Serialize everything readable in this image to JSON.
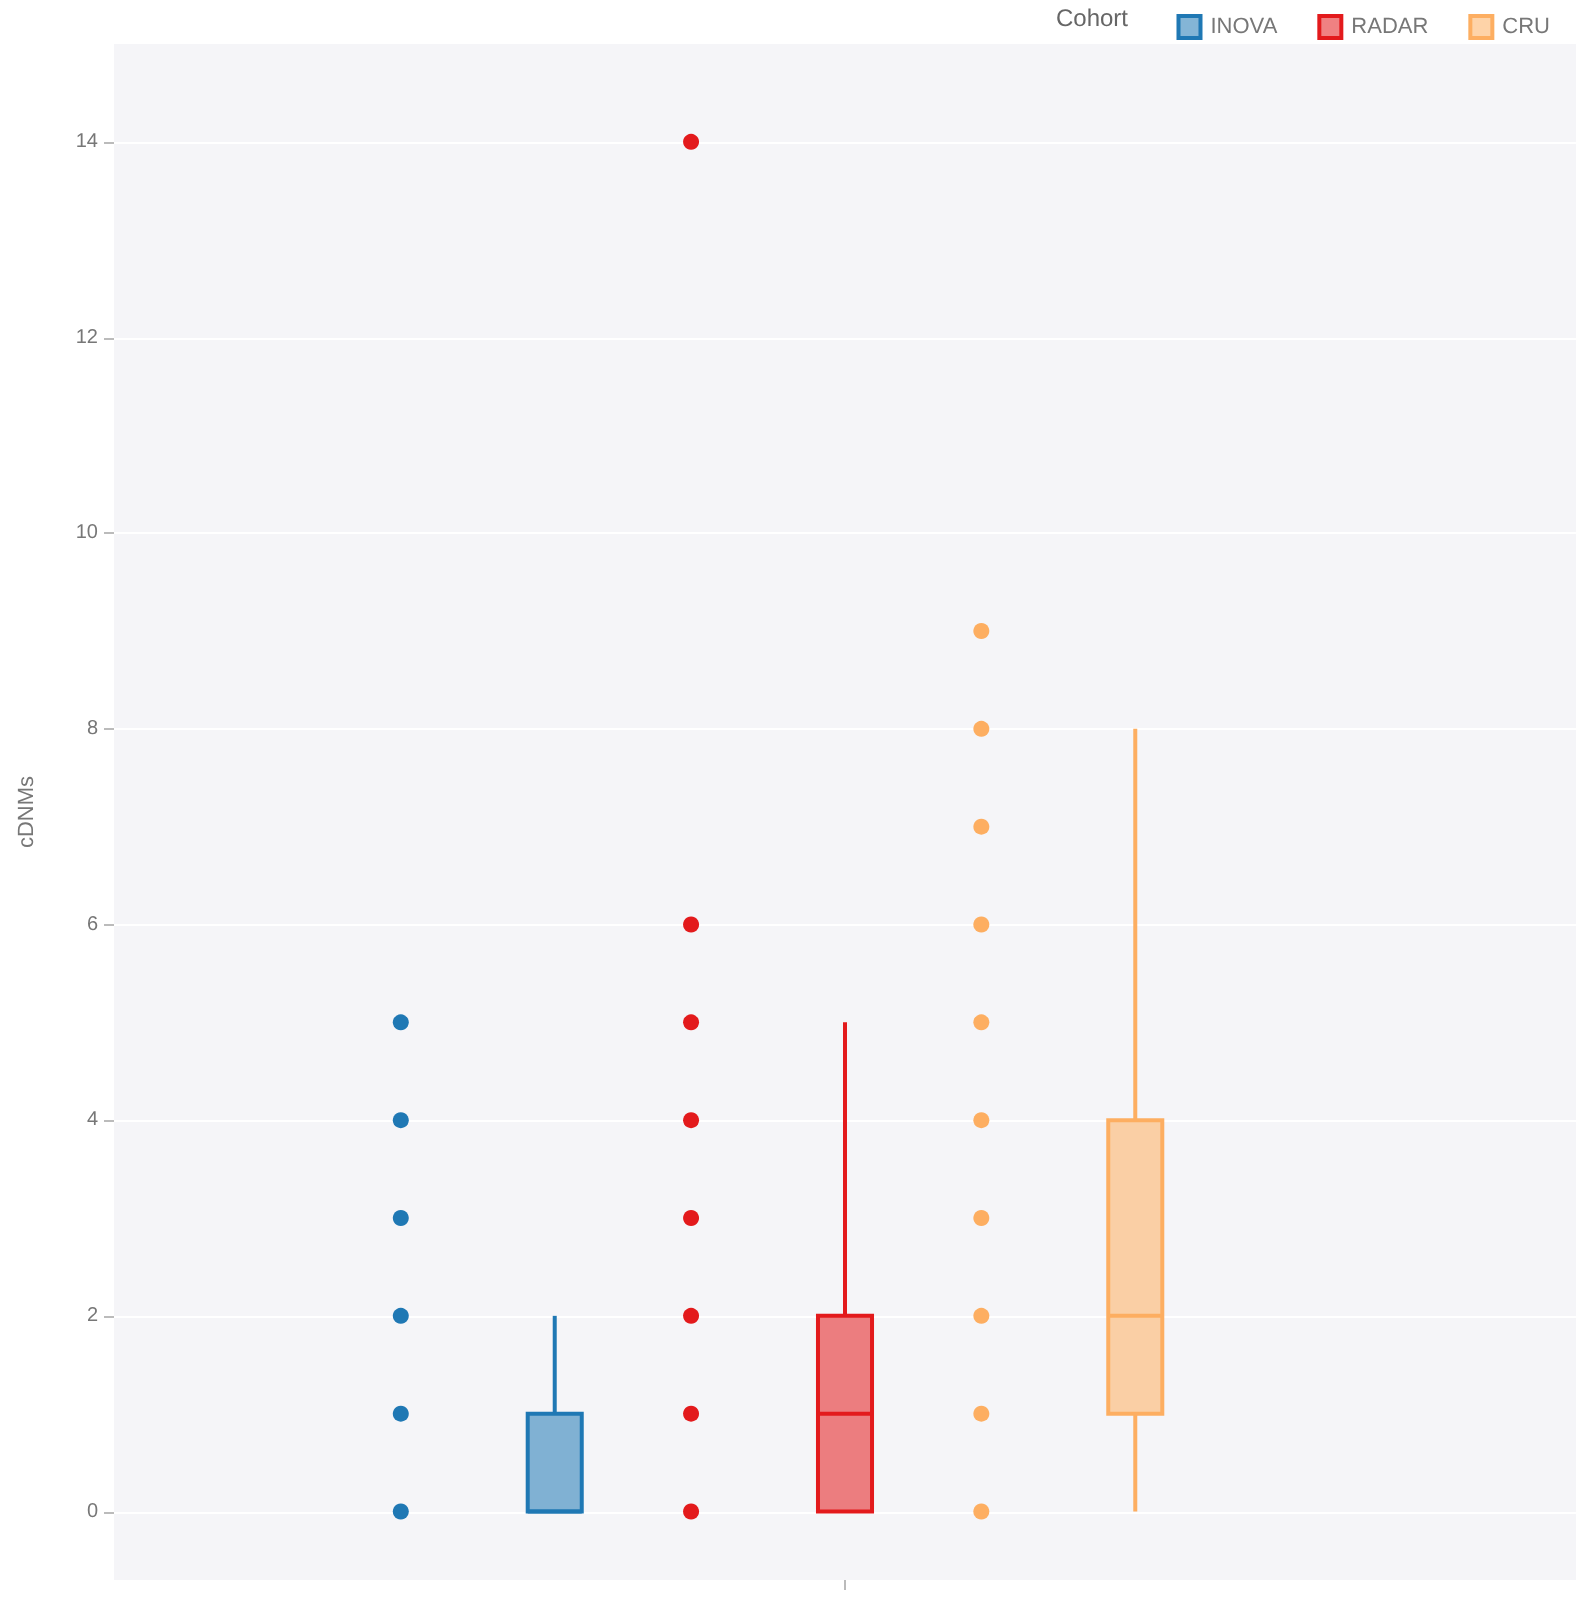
{
  "chart_data": {
    "type": "box",
    "ylabel": "cDNMs",
    "legend_title": "Cohort",
    "categories": [
      null
    ],
    "series": [
      {
        "name": "INOVA",
        "color": "#1f78b4",
        "boxes": [
          {
            "low": 0,
            "q1": 0,
            "median": 0,
            "q3": 1,
            "high": 2
          }
        ]
      },
      {
        "name": "RADAR",
        "color": "#e31a1c",
        "boxes": [
          {
            "low": 0,
            "q1": 0,
            "median": 1,
            "q3": 2,
            "high": 5
          }
        ]
      },
      {
        "name": "CRU",
        "color": "#fdae61",
        "boxes": [
          {
            "low": 0,
            "q1": 1,
            "median": 2,
            "q3": 4,
            "high": 8
          }
        ]
      },
      {
        "type": "scatter",
        "color": "#1f78b4",
        "x": [
          null,
          null,
          null,
          null,
          null,
          null
        ],
        "values": [
          0,
          1,
          2,
          3,
          4,
          5
        ]
      },
      {
        "type": "scatter",
        "color": "#e31a1c",
        "x": [
          null,
          null,
          null,
          null,
          null,
          null,
          null,
          null
        ],
        "values": [
          0,
          1,
          2,
          3,
          4,
          5,
          6,
          14
        ]
      },
      {
        "type": "scatter",
        "color": "#fdae61",
        "x": [
          null,
          null,
          null,
          null,
          null,
          null,
          null,
          null,
          null,
          null
        ],
        "values": [
          0,
          1,
          2,
          3,
          4,
          5,
          6,
          7,
          8,
          9
        ]
      }
    ],
    "ylim": [
      -0.7,
      15
    ],
    "yticks": [
      0,
      2,
      4,
      6,
      8,
      10,
      12,
      14
    ],
    "grid": "y",
    "legend": "top right",
    "marker": "circle"
  }
}
